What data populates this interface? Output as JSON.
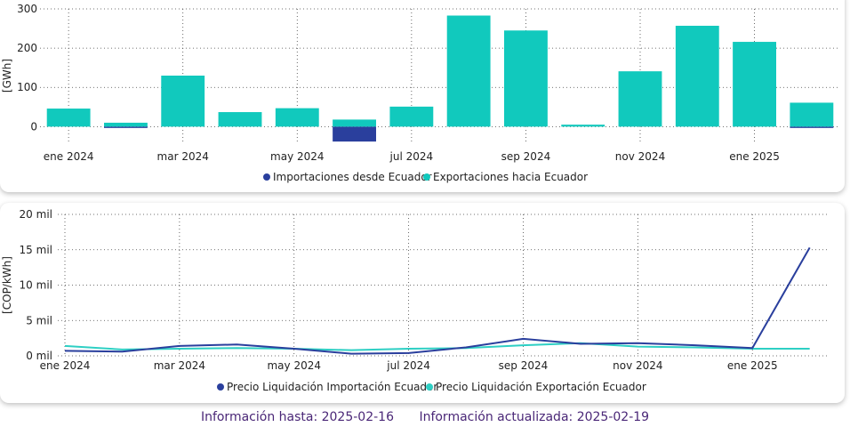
{
  "chart_data": [
    {
      "type": "bar",
      "ylabel": "[GWh]",
      "ylim": [
        -40,
        300
      ],
      "yticks": [
        0,
        100,
        200,
        300
      ],
      "grid": true,
      "legend_position": "bottom",
      "x_tick_labels": [
        "ene 2024",
        "mar 2024",
        "may 2024",
        "jul 2024",
        "sep 2024",
        "nov 2024",
        "ene 2025"
      ],
      "categories": [
        "2024-01",
        "2024-02",
        "2024-03",
        "2024-04",
        "2024-05",
        "2024-06",
        "2024-07",
        "2024-08",
        "2024-09",
        "2024-10",
        "2024-11",
        "2024-12",
        "2025-01",
        "2025-02"
      ],
      "series": [
        {
          "name": "Importaciones desde Ecuador",
          "color": "#2a3f9d",
          "values": [
            0,
            -3,
            0,
            0,
            0,
            -38,
            0,
            0,
            0,
            0,
            0,
            0,
            0,
            -2
          ]
        },
        {
          "name": "Exportaciones hacia Ecuador",
          "color": "#11c9bd",
          "values": [
            46,
            10,
            130,
            37,
            47,
            18,
            51,
            283,
            245,
            5,
            141,
            257,
            216,
            61
          ]
        }
      ]
    },
    {
      "type": "line",
      "ylabel": "[COP/kWh]",
      "ylim": [
        0,
        20000
      ],
      "yticks": [
        0,
        5000,
        10000,
        15000,
        20000
      ],
      "ytick_labels": [
        "0 mil",
        "5 mil",
        "10 mil",
        "15 mil",
        "20 mil"
      ],
      "grid": true,
      "legend_position": "bottom",
      "x_tick_labels": [
        "ene 2024",
        "mar 2024",
        "may 2024",
        "jul 2024",
        "sep 2024",
        "nov 2024",
        "ene 2025"
      ],
      "categories": [
        "2024-01",
        "2024-02",
        "2024-03",
        "2024-04",
        "2024-05",
        "2024-06",
        "2024-07",
        "2024-08",
        "2024-09",
        "2024-10",
        "2024-11",
        "2024-12",
        "2025-01",
        "2025-02"
      ],
      "series": [
        {
          "name": "Precio Liquidación Importación Ecuador",
          "color": "#2a3f9d",
          "values": [
            700,
            600,
            1400,
            1600,
            1000,
            300,
            400,
            1200,
            2400,
            1700,
            1800,
            1500,
            1100,
            15300
          ]
        },
        {
          "name": "Precio Liquidación Exportación Ecuador",
          "color": "#2ecfc4",
          "values": [
            1400,
            900,
            1000,
            1100,
            1000,
            800,
            1000,
            1100,
            1500,
            1800,
            1300,
            1200,
            1000,
            1000
          ]
        }
      ]
    }
  ],
  "footer": {
    "info_hasta": "Información hasta: 2025-02-16",
    "info_actualizada": "Información actualizada: 2025-02-19"
  }
}
